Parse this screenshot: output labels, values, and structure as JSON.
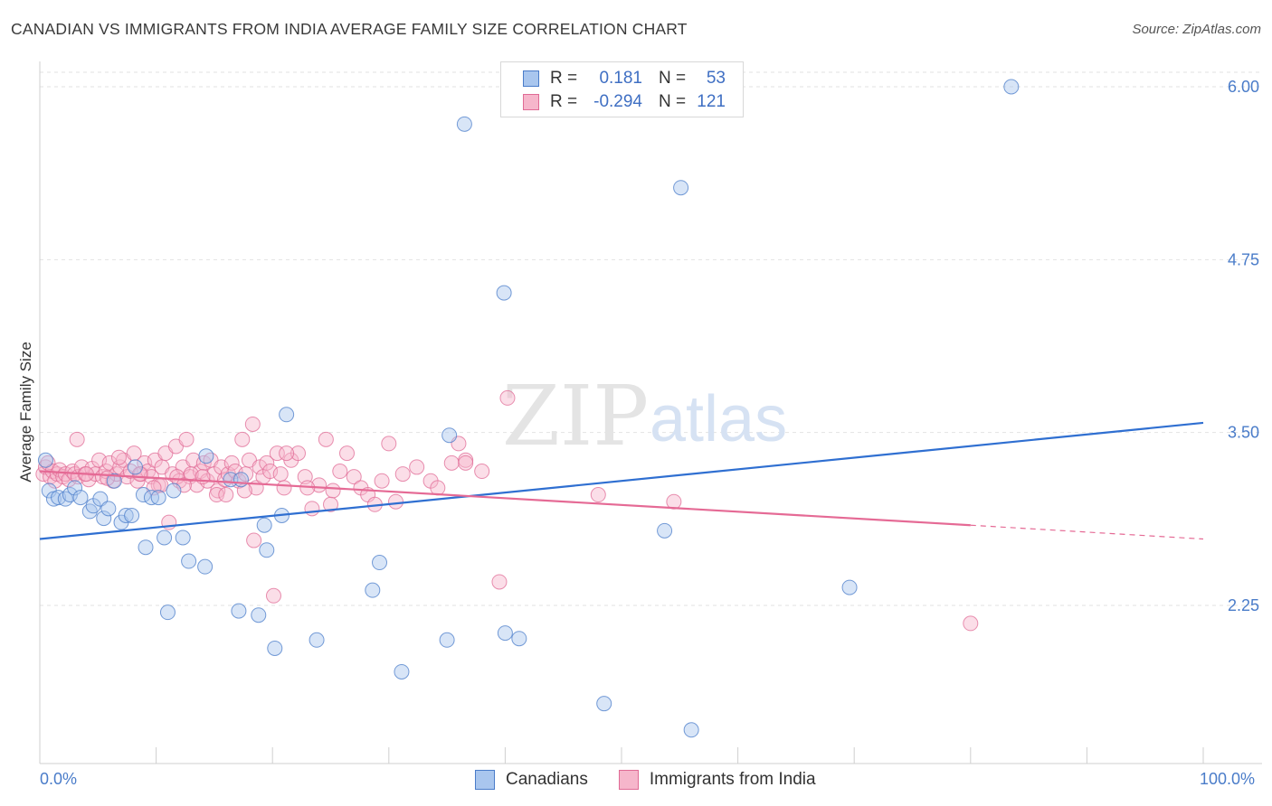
{
  "title": "CANADIAN VS IMMIGRANTS FROM INDIA AVERAGE FAMILY SIZE CORRELATION CHART",
  "source": "Source: ZipAtlas.com",
  "watermark": {
    "zip": "ZIP",
    "atlas": "atlas"
  },
  "legend": {
    "r_label": "R =",
    "n_label": "N =",
    "canadians": {
      "r": "0.181",
      "n": "53"
    },
    "india": {
      "r": "-0.294",
      "n": "121"
    }
  },
  "bottom_legend": {
    "canadians": "Canadians",
    "india": "Immigrants from India"
  },
  "chart_data": {
    "type": "scatter",
    "title": "CANADIAN VS IMMIGRANTS FROM INDIA AVERAGE FAMILY SIZE CORRELATION CHART",
    "xlabel": "",
    "ylabel": "Average Family Size",
    "x_tick_labels": [
      "0.0%",
      "100.0%"
    ],
    "y_ticks": [
      2.25,
      3.5,
      4.75,
      6.0
    ],
    "y_tick_labels": [
      "2.25",
      "3.50",
      "4.75",
      "6.00"
    ],
    "xlim": [
      0,
      100
    ],
    "ylim": [
      1.25,
      6.1
    ],
    "grid": true,
    "legend_position": "top-center",
    "colors": {
      "canadians": "#4a7cc9",
      "india": "#e06b95",
      "canadians_fill": "#a9c6ee",
      "india_fill": "#f6b6cb"
    },
    "series": [
      {
        "name": "Canadians",
        "points": [
          [
            0.5,
            3.3
          ],
          [
            0.8,
            3.08
          ],
          [
            1.2,
            3.02
          ],
          [
            1.6,
            3.03
          ],
          [
            2.2,
            3.02
          ],
          [
            2.6,
            3.05
          ],
          [
            3.0,
            3.1
          ],
          [
            3.5,
            3.03
          ],
          [
            4.3,
            2.93
          ],
          [
            4.6,
            2.97
          ],
          [
            5.2,
            3.02
          ],
          [
            5.5,
            2.88
          ],
          [
            5.9,
            2.95
          ],
          [
            6.4,
            3.15
          ],
          [
            7.0,
            2.85
          ],
          [
            7.4,
            2.9
          ],
          [
            7.9,
            2.9
          ],
          [
            8.2,
            3.25
          ],
          [
            8.9,
            3.05
          ],
          [
            9.1,
            2.67
          ],
          [
            9.6,
            3.03
          ],
          [
            10.2,
            3.03
          ],
          [
            10.7,
            2.74
          ],
          [
            11.0,
            2.2
          ],
          [
            11.5,
            3.08
          ],
          [
            12.3,
            2.74
          ],
          [
            12.8,
            2.57
          ],
          [
            14.2,
            2.53
          ],
          [
            14.3,
            3.33
          ],
          [
            16.4,
            3.16
          ],
          [
            17.1,
            2.21
          ],
          [
            17.3,
            3.16
          ],
          [
            18.8,
            2.18
          ],
          [
            19.3,
            2.83
          ],
          [
            19.5,
            2.65
          ],
          [
            20.2,
            1.94
          ],
          [
            20.8,
            2.9
          ],
          [
            21.2,
            3.63
          ],
          [
            23.8,
            2.0
          ],
          [
            28.6,
            2.36
          ],
          [
            29.2,
            2.56
          ],
          [
            31.1,
            1.77
          ],
          [
            35.0,
            2.0
          ],
          [
            35.2,
            3.48
          ],
          [
            36.5,
            5.73
          ],
          [
            39.9,
            4.51
          ],
          [
            40.0,
            2.05
          ],
          [
            41.2,
            2.01
          ],
          [
            48.5,
            1.54
          ],
          [
            53.7,
            2.79
          ],
          [
            55.1,
            5.27
          ],
          [
            56.0,
            1.35
          ],
          [
            69.6,
            2.38
          ],
          [
            83.5,
            6.0
          ]
        ]
      },
      {
        "name": "Immigrants from India",
        "points": [
          [
            0.3,
            3.2
          ],
          [
            0.5,
            3.25
          ],
          [
            0.7,
            3.28
          ],
          [
            0.9,
            3.18
          ],
          [
            1.1,
            3.22
          ],
          [
            1.3,
            3.15
          ],
          [
            1.5,
            3.2
          ],
          [
            1.7,
            3.23
          ],
          [
            2.0,
            3.18
          ],
          [
            2.2,
            3.2
          ],
          [
            2.5,
            3.16
          ],
          [
            2.8,
            3.22
          ],
          [
            3.0,
            3.2
          ],
          [
            3.3,
            3.18
          ],
          [
            3.6,
            3.25
          ],
          [
            3.9,
            3.2
          ],
          [
            4.2,
            3.16
          ],
          [
            4.5,
            3.24
          ],
          [
            4.8,
            3.2
          ],
          [
            5.1,
            3.3
          ],
          [
            5.4,
            3.18
          ],
          [
            5.7,
            3.22
          ],
          [
            6.0,
            3.28
          ],
          [
            6.3,
            3.15
          ],
          [
            6.6,
            3.2
          ],
          [
            6.9,
            3.25
          ],
          [
            7.2,
            3.3
          ],
          [
            7.5,
            3.18
          ],
          [
            7.8,
            3.22
          ],
          [
            8.1,
            3.35
          ],
          [
            8.4,
            3.15
          ],
          [
            8.7,
            3.2
          ],
          [
            9.0,
            3.28
          ],
          [
            9.3,
            3.22
          ],
          [
            9.6,
            3.18
          ],
          [
            9.9,
            3.3
          ],
          [
            10.2,
            3.12
          ],
          [
            10.5,
            3.25
          ],
          [
            10.8,
            3.35
          ],
          [
            11.1,
            2.85
          ],
          [
            11.4,
            3.2
          ],
          [
            11.7,
            3.4
          ],
          [
            12.0,
            3.15
          ],
          [
            12.3,
            3.25
          ],
          [
            12.6,
            3.45
          ],
          [
            12.9,
            3.18
          ],
          [
            13.2,
            3.3
          ],
          [
            13.5,
            3.12
          ],
          [
            13.8,
            3.22
          ],
          [
            14.1,
            3.28
          ],
          [
            14.4,
            3.15
          ],
          [
            14.7,
            3.3
          ],
          [
            15.0,
            3.2
          ],
          [
            15.3,
            3.08
          ],
          [
            15.6,
            3.25
          ],
          [
            15.9,
            3.16
          ],
          [
            16.2,
            3.2
          ],
          [
            16.5,
            3.28
          ],
          [
            16.8,
            3.22
          ],
          [
            17.1,
            3.15
          ],
          [
            17.4,
            3.45
          ],
          [
            17.7,
            3.2
          ],
          [
            18.0,
            3.3
          ],
          [
            18.3,
            3.56
          ],
          [
            18.6,
            3.1
          ],
          [
            18.9,
            3.25
          ],
          [
            19.2,
            3.18
          ],
          [
            19.5,
            3.28
          ],
          [
            19.8,
            3.22
          ],
          [
            20.1,
            2.32
          ],
          [
            20.4,
            3.35
          ],
          [
            20.7,
            3.2
          ],
          [
            21.0,
            3.1
          ],
          [
            21.6,
            3.3
          ],
          [
            22.2,
            3.35
          ],
          [
            22.8,
            3.18
          ],
          [
            23.4,
            2.95
          ],
          [
            24.0,
            3.12
          ],
          [
            24.6,
            3.45
          ],
          [
            25.2,
            3.08
          ],
          [
            25.8,
            3.22
          ],
          [
            26.4,
            3.35
          ],
          [
            27.0,
            3.18
          ],
          [
            27.6,
            3.1
          ],
          [
            28.2,
            3.05
          ],
          [
            29.4,
            3.15
          ],
          [
            30.0,
            3.42
          ],
          [
            30.6,
            3.0
          ],
          [
            31.2,
            3.2
          ],
          [
            32.4,
            3.25
          ],
          [
            33.6,
            3.15
          ],
          [
            34.2,
            3.1
          ],
          [
            35.4,
            3.28
          ],
          [
            36.0,
            3.42
          ],
          [
            36.6,
            3.3
          ],
          [
            38.0,
            3.22
          ],
          [
            39.5,
            2.42
          ],
          [
            40.2,
            3.75
          ],
          [
            48.0,
            3.05
          ],
          [
            54.5,
            3.0
          ],
          [
            15.2,
            3.05
          ],
          [
            10.4,
            3.12
          ],
          [
            3.2,
            3.45
          ],
          [
            4.0,
            3.2
          ],
          [
            5.8,
            3.17
          ],
          [
            6.8,
            3.32
          ],
          [
            8.6,
            3.2
          ],
          [
            9.8,
            3.1
          ],
          [
            11.8,
            3.18
          ],
          [
            12.4,
            3.12
          ],
          [
            13.0,
            3.2
          ],
          [
            14.0,
            3.18
          ],
          [
            16.0,
            3.05
          ],
          [
            17.6,
            3.08
          ],
          [
            18.4,
            2.72
          ],
          [
            21.2,
            3.35
          ],
          [
            23.0,
            3.1
          ],
          [
            25.0,
            2.98
          ],
          [
            28.8,
            2.98
          ],
          [
            36.6,
            3.28
          ],
          [
            80.0,
            2.12
          ]
        ]
      }
    ],
    "trendlines": [
      {
        "series": "Canadians",
        "x": [
          0,
          100
        ],
        "y": [
          2.73,
          3.57
        ]
      },
      {
        "series": "Immigrants from India",
        "x": [
          0,
          80
        ],
        "y": [
          3.22,
          2.83
        ],
        "dashed_to": [
          100,
          2.73
        ]
      }
    ]
  }
}
